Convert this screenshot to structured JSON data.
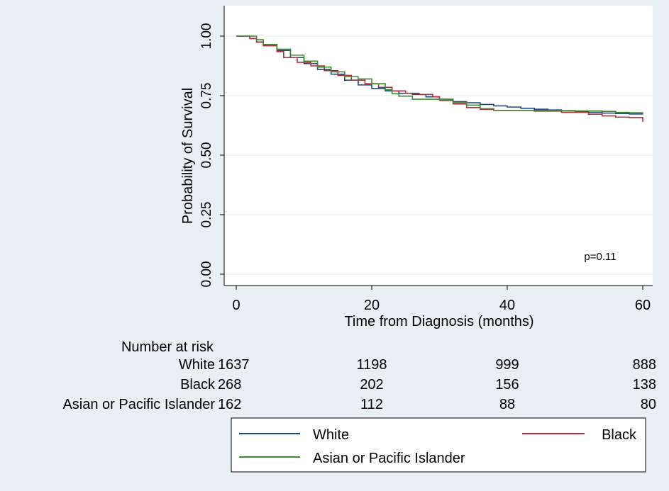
{
  "chart_data": {
    "type": "line",
    "step": true,
    "title": "",
    "xlabel": "Time from Diagnosis (months)",
    "ylabel": "Probability of Survival",
    "xlim": [
      0,
      60
    ],
    "ylim": [
      0,
      1
    ],
    "x_ticks": [
      "0",
      "20",
      "40",
      "60"
    ],
    "y_ticks": [
      "0.00",
      "0.25",
      "0.50",
      "0.75",
      "1.00"
    ],
    "grid": true,
    "annotation": "p=0.11",
    "colors": {
      "background": "#e8f0f3",
      "plot": "#ffffff",
      "grid": "#e8f0f3"
    },
    "series": [
      {
        "name": "White",
        "color": "#1a4a7a",
        "points": [
          [
            0,
            1.0
          ],
          [
            2,
            0.99
          ],
          [
            3,
            0.975
          ],
          [
            4,
            0.96
          ],
          [
            6,
            0.94
          ],
          [
            8,
            0.91
          ],
          [
            10,
            0.885
          ],
          [
            12,
            0.86
          ],
          [
            14,
            0.84
          ],
          [
            16,
            0.815
          ],
          [
            18,
            0.795
          ],
          [
            20,
            0.78
          ],
          [
            22,
            0.77
          ],
          [
            24,
            0.76
          ],
          [
            26,
            0.755
          ],
          [
            28,
            0.745
          ],
          [
            30,
            0.735
          ],
          [
            32,
            0.725
          ],
          [
            34,
            0.72
          ],
          [
            36,
            0.713
          ],
          [
            38,
            0.707
          ],
          [
            40,
            0.702
          ],
          [
            42,
            0.697
          ],
          [
            44,
            0.693
          ],
          [
            46,
            0.69
          ],
          [
            48,
            0.687
          ],
          [
            50,
            0.684
          ],
          [
            52,
            0.68
          ],
          [
            54,
            0.677
          ],
          [
            56,
            0.675
          ],
          [
            58,
            0.673
          ],
          [
            60,
            0.672
          ]
        ]
      },
      {
        "name": "Black",
        "color": "#b22d3c",
        "points": [
          [
            0,
            1.0
          ],
          [
            2,
            0.99
          ],
          [
            3,
            0.975
          ],
          [
            4,
            0.96
          ],
          [
            6,
            0.935
          ],
          [
            7,
            0.91
          ],
          [
            9,
            0.89
          ],
          [
            11,
            0.875
          ],
          [
            13,
            0.855
          ],
          [
            15,
            0.835
          ],
          [
            17,
            0.815
          ],
          [
            19,
            0.8
          ],
          [
            21,
            0.785
          ],
          [
            23,
            0.77
          ],
          [
            25,
            0.76
          ],
          [
            27,
            0.755
          ],
          [
            29,
            0.745
          ],
          [
            30,
            0.73
          ],
          [
            32,
            0.715
          ],
          [
            34,
            0.7
          ],
          [
            36,
            0.692
          ],
          [
            38,
            0.688
          ],
          [
            40,
            0.688
          ],
          [
            44,
            0.685
          ],
          [
            48,
            0.68
          ],
          [
            50,
            0.68
          ],
          [
            52,
            0.672
          ],
          [
            54,
            0.665
          ],
          [
            56,
            0.66
          ],
          [
            58,
            0.658
          ],
          [
            60,
            0.658
          ],
          [
            60,
            0.64
          ]
        ]
      },
      {
        "name": "Asian or Pacific Islander",
        "color": "#3d8b2f",
        "points": [
          [
            0,
            1.0
          ],
          [
            3,
            0.985
          ],
          [
            4,
            0.965
          ],
          [
            6,
            0.945
          ],
          [
            8,
            0.92
          ],
          [
            10,
            0.895
          ],
          [
            12,
            0.87
          ],
          [
            14,
            0.85
          ],
          [
            16,
            0.83
          ],
          [
            18,
            0.82
          ],
          [
            20,
            0.8
          ],
          [
            22,
            0.775
          ],
          [
            23,
            0.758
          ],
          [
            24,
            0.748
          ],
          [
            26,
            0.735
          ],
          [
            30,
            0.735
          ],
          [
            32,
            0.72
          ],
          [
            34,
            0.71
          ],
          [
            36,
            0.695
          ],
          [
            38,
            0.688
          ],
          [
            42,
            0.688
          ],
          [
            46,
            0.688
          ],
          [
            48,
            0.686
          ],
          [
            52,
            0.686
          ],
          [
            54,
            0.684
          ],
          [
            56,
            0.68
          ],
          [
            58,
            0.678
          ],
          [
            60,
            0.675
          ]
        ]
      }
    ],
    "risk_table": {
      "title": "Number at risk",
      "times": [
        0,
        20,
        40,
        60
      ],
      "rows": [
        {
          "label": "White",
          "counts": [
            "1637",
            "1198",
            "999",
            "888"
          ]
        },
        {
          "label": "Black",
          "counts": [
            "268",
            "202",
            "156",
            "138"
          ]
        },
        {
          "label": "Asian or Pacific Islander",
          "counts": [
            "162",
            "112",
            "88",
            "80"
          ]
        }
      ]
    },
    "legend": {
      "position": "bottom",
      "items": [
        {
          "name": "White",
          "color": "#1a4a7a"
        },
        {
          "name": "Black",
          "color": "#b22d3c"
        },
        {
          "name": "Asian or Pacific Islander",
          "color": "#3d8b2f"
        }
      ]
    }
  }
}
